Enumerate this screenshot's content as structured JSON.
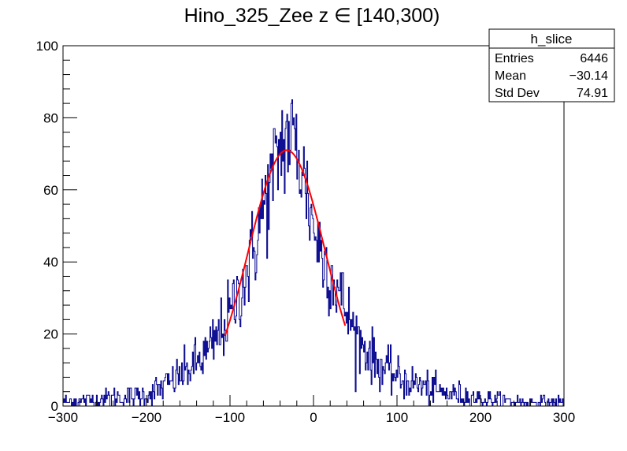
{
  "chart_data": {
    "type": "histogram",
    "title": "Hino_325_Zee z  ∈ [140,300)",
    "xlabel": "",
    "ylabel": "",
    "xlim": [
      -300,
      300
    ],
    "ylim": [
      0,
      100
    ],
    "x_ticks": [
      -300,
      -200,
      -100,
      0,
      100,
      200,
      300
    ],
    "x_tick_labels": [
      "−300",
      "−200",
      "−100",
      "0",
      "100",
      "200",
      "300"
    ],
    "y_ticks": [
      0,
      20,
      40,
      60,
      80,
      100
    ],
    "y_tick_labels": [
      "0",
      "20",
      "40",
      "60",
      "80",
      "100"
    ],
    "n_bins": 600,
    "histogram_color": "#00008b",
    "fit_color": "#ff0000",
    "histogram_envelope": {
      "description_x": [
        -300,
        -250,
        -200,
        -175,
        -150,
        -125,
        -100,
        -75,
        -60,
        -50,
        -40,
        -30,
        -20,
        -10,
        0,
        10,
        25,
        50,
        75,
        100,
        125,
        150,
        200,
        250,
        300
      ],
      "description_y": [
        1,
        2,
        3,
        6,
        10,
        15,
        25,
        40,
        55,
        62,
        72,
        75,
        72,
        62,
        50,
        42,
        35,
        20,
        12,
        8,
        6,
        4,
        2,
        1,
        1
      ]
    },
    "fit": {
      "function": "gaus",
      "constant": 71,
      "mean": -32,
      "sigma": 46,
      "x_range": [
        -106,
        38
      ]
    },
    "legend": {
      "name": "h_slice",
      "rows": [
        {
          "label": "Entries",
          "value": "6446"
        },
        {
          "label": "Mean",
          "value": "−30.14"
        },
        {
          "label": "Std Dev",
          "value": "74.91"
        }
      ],
      "placement": "top-right"
    }
  }
}
